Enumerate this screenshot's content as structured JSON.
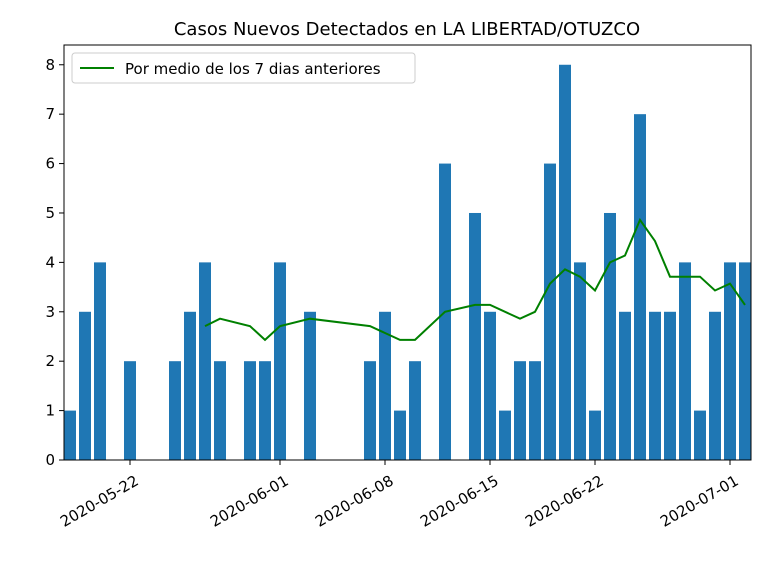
{
  "chart_data": {
    "type": "bar",
    "title": "Casos Nuevos Detectados en LA LIBERTAD/OTUZCO",
    "xlabel": "",
    "ylabel": "",
    "ylim": [
      0,
      8.4
    ],
    "xlim": [
      "2020-05-17",
      "2020-07-02"
    ],
    "yticks": [
      0,
      1,
      2,
      3,
      4,
      5,
      6,
      7,
      8
    ],
    "xticks": [
      "2020-05-22",
      "2020-06-01",
      "2020-06-08",
      "2020-06-15",
      "2020-06-22",
      "2020-07-01"
    ],
    "grid": false,
    "legend_position": "upper-left",
    "bar_color": "#1f77b4",
    "line_color": "#008000",
    "bars": {
      "name": "",
      "x": [
        "2020-05-18",
        "2020-05-19",
        "2020-05-20",
        "2020-05-22",
        "2020-05-25",
        "2020-05-26",
        "2020-05-27",
        "2020-05-28",
        "2020-05-30",
        "2020-05-31",
        "2020-06-01",
        "2020-06-03",
        "2020-06-07",
        "2020-06-08",
        "2020-06-09",
        "2020-06-10",
        "2020-06-12",
        "2020-06-14",
        "2020-06-15",
        "2020-06-16",
        "2020-06-17",
        "2020-06-18",
        "2020-06-19",
        "2020-06-20",
        "2020-06-21",
        "2020-06-22",
        "2020-06-23",
        "2020-06-24",
        "2020-06-25",
        "2020-06-26",
        "2020-06-27",
        "2020-06-28",
        "2020-06-29",
        "2020-06-30",
        "2020-07-01",
        "2020-07-02"
      ],
      "values": [
        1,
        3,
        4,
        2,
        2,
        3,
        4,
        2,
        2,
        2,
        4,
        3,
        2,
        3,
        1,
        2,
        6,
        5,
        3,
        1,
        2,
        2,
        6,
        8,
        4,
        1,
        5,
        3,
        7,
        3,
        3,
        4,
        1,
        3,
        4,
        4
      ]
    },
    "series": [
      {
        "name": "Por medio de los 7 dias anteriores",
        "x": [
          "2020-05-27",
          "2020-05-28",
          "2020-05-30",
          "2020-05-31",
          "2020-06-01",
          "2020-06-03",
          "2020-06-07",
          "2020-06-08",
          "2020-06-09",
          "2020-06-10",
          "2020-06-12",
          "2020-06-14",
          "2020-06-15",
          "2020-06-17",
          "2020-06-18",
          "2020-06-19",
          "2020-06-20",
          "2020-06-21",
          "2020-06-22",
          "2020-06-23",
          "2020-06-24",
          "2020-06-25",
          "2020-06-26",
          "2020-06-27",
          "2020-06-28",
          "2020-06-29",
          "2020-06-30",
          "2020-07-01",
          "2020-07-02"
        ],
        "values": [
          2.71,
          2.86,
          2.71,
          2.43,
          2.71,
          2.86,
          2.71,
          2.57,
          2.43,
          2.43,
          3.0,
          3.14,
          3.14,
          2.86,
          3.0,
          3.57,
          3.86,
          3.71,
          3.43,
          4.0,
          4.14,
          4.86,
          4.43,
          3.71,
          3.71,
          3.71,
          3.43,
          3.57,
          3.14
        ]
      }
    ]
  }
}
